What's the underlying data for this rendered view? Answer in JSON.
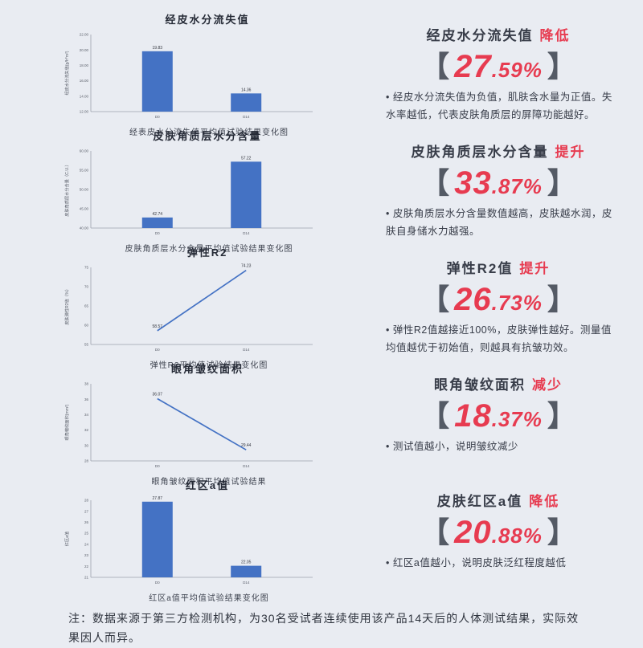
{
  "ui": {
    "bullet": "•",
    "bracket_left": "【",
    "bracket_right": "】"
  },
  "colors": {
    "background": "#e9ecf2",
    "series_blue": "#4472c4",
    "accent_red": "#e73b50",
    "text_dark": "#383d49"
  },
  "chart_data": [
    {
      "type": "bar",
      "title": "经皮水分流失值",
      "ylabel": "经皮水分流失值(g/h*m²)",
      "caption": "经表皮水分流失值平均值试验结果变化图",
      "categories": [
        "D0",
        "D14"
      ],
      "values": [
        19.83,
        14.36
      ],
      "ylim": [
        12,
        22
      ],
      "ytick_step": 2,
      "tick_decimals": 2,
      "label_decimals": 2,
      "grid": false,
      "legend": "none"
    },
    {
      "type": "bar",
      "title": "皮肤角质层水分含量",
      "ylabel": "皮肤角质层水分含量（C.U.）",
      "caption": "皮肤角质层水分含量平均值试验结果变化图",
      "categories": [
        "D0",
        "D14"
      ],
      "values": [
        42.74,
        57.22
      ],
      "ylim": [
        40,
        60
      ],
      "ytick_step": 5,
      "tick_decimals": 2,
      "label_decimals": 2,
      "grid": false,
      "legend": "none"
    },
    {
      "type": "line",
      "title": "弹性R2",
      "ylabel": "皮肤弹性R2值（%）",
      "caption": "弹性R2平均值试验结果变化图",
      "categories": [
        "D0",
        "D14"
      ],
      "values": [
        58.57,
        74.23
      ],
      "ylim": [
        55,
        75
      ],
      "ytick_step": 5,
      "tick_decimals": 0,
      "label_decimals": 2,
      "grid": false,
      "legend": "none"
    },
    {
      "type": "line",
      "title": "眼角皱纹面积",
      "ylabel": "眼角皱纹面积(mm²)",
      "caption": "眼角皱纹面积平均值试验结果",
      "categories": [
        "D0",
        "D14"
      ],
      "values": [
        36.07,
        29.44
      ],
      "ylim": [
        28,
        38
      ],
      "ytick_step": 2,
      "tick_decimals": 0,
      "label_decimals": 2,
      "grid": false,
      "legend": "none"
    },
    {
      "type": "bar",
      "title": "红区a值",
      "ylabel": "红区a值",
      "caption": "红区a值平均值试验结果变化图",
      "categories": [
        "D0",
        "D14"
      ],
      "values": [
        27.87,
        22.05
      ],
      "ylim": [
        21,
        28
      ],
      "ytick_step": 1,
      "tick_decimals": 0,
      "label_decimals": 2,
      "grid": false,
      "legend": "none"
    }
  ],
  "panels": [
    {
      "title": "经皮水分流失值",
      "keyword": "降低",
      "percent": "27.59%",
      "desc": "经皮水分流失值为负值，肌肤含水量为正值。失水率越低，代表皮肤角质层的屏障功能越好。"
    },
    {
      "title": "皮肤角质层水分含量",
      "keyword": "提升",
      "percent": "33.87%",
      "desc": "皮肤角质层水分含量数值越高，皮肤越水润，皮肤自身储水力越强。"
    },
    {
      "title": "弹性R2值",
      "keyword": "提升",
      "percent": "26.73%",
      "desc": "弹性R2值越接近100%，皮肤弹性越好。测量值均值越优于初始值，则越具有抗皱功效。"
    },
    {
      "title": "眼角皱纹面积",
      "keyword": "减少",
      "percent": "18.37%",
      "desc": "测试值越小，说明皱纹减少"
    },
    {
      "title": "皮肤红区a值",
      "keyword": "降低",
      "percent": "20.88%",
      "desc": "红区a值越小，说明皮肤泛红程度越低"
    }
  ],
  "note": "注：数据来源于第三方检测机构，为30名受试者连续使用该产品14天后的人体测试结果，实际效果因人而异。"
}
